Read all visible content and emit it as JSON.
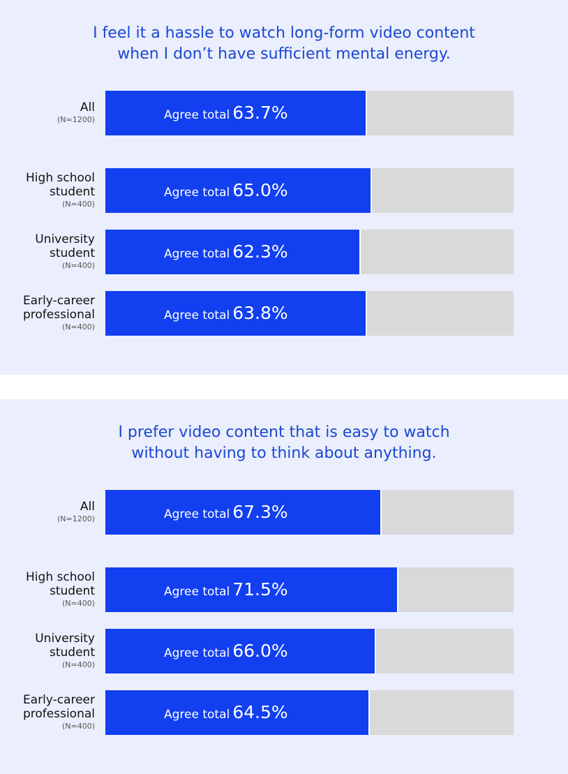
{
  "colors": {
    "agree": "#123ff0",
    "rest": "#d9d9d9",
    "background": "#ebeefc",
    "title": "#1a48d4"
  },
  "chart_data": [
    {
      "type": "bar",
      "orientation": "horizontal",
      "stacked": true,
      "title_lines": [
        "I feel it a hassle to watch long-form video content",
        "when I don’t have sufficient mental energy."
      ],
      "value_prefix": "Agree total",
      "categories": [
        {
          "name_lines": [
            "All"
          ],
          "n": "(N=1200)",
          "value": 63.7,
          "label": "63.7%"
        },
        {
          "name_lines": [
            "High school",
            "student"
          ],
          "n": "(N=400)",
          "value": 65.0,
          "label": "65.0%"
        },
        {
          "name_lines": [
            "University",
            "student"
          ],
          "n": "(N=400)",
          "value": 62.3,
          "label": "62.3%"
        },
        {
          "name_lines": [
            "Early-career",
            "professional"
          ],
          "n": "(N=400)",
          "value": 63.8,
          "label": "63.8%"
        }
      ],
      "xlim": [
        0,
        100
      ]
    },
    {
      "type": "bar",
      "orientation": "horizontal",
      "stacked": true,
      "title_lines": [
        "I prefer video content that is easy to watch",
        "without having to think about anything."
      ],
      "value_prefix": "Agree total",
      "categories": [
        {
          "name_lines": [
            "All"
          ],
          "n": "(N=1200)",
          "value": 67.3,
          "label": "67.3%"
        },
        {
          "name_lines": [
            "High school",
            "student"
          ],
          "n": "(N=400)",
          "value": 71.5,
          "label": "71.5%"
        },
        {
          "name_lines": [
            "University",
            "student"
          ],
          "n": "(N=400)",
          "value": 66.0,
          "label": "66.0%"
        },
        {
          "name_lines": [
            "Early-career",
            "professional"
          ],
          "n": "(N=400)",
          "value": 64.5,
          "label": "64.5%"
        }
      ],
      "xlim": [
        0,
        100
      ]
    }
  ]
}
